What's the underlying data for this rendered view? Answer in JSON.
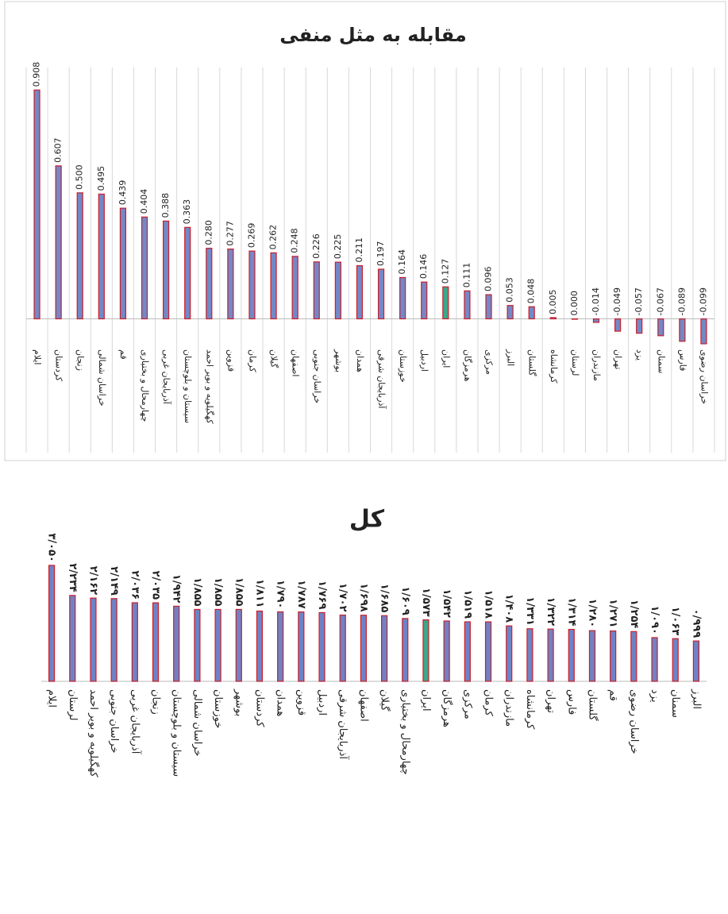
{
  "chart_data": [
    {
      "type": "bar",
      "title": "مقابله به مثل منفی",
      "categories": [
        "ایلام",
        "کردستان",
        "زنجان",
        "خراسان شمالی",
        "قم",
        "چهارمحال و بختیاری",
        "آذربایجان غربی",
        "سیستان و بلوچستان",
        "کهگیلویه و بویر احمد",
        "قزوین",
        "کرمان",
        "گیلان",
        "اصفهان",
        "خراسان جنوبی",
        "بوشهر",
        "همدان",
        "آذربایجان شرقی",
        "خوزستان",
        "اردبیل",
        "ایران",
        "هرمزگان",
        "مرکزی",
        "البرز",
        "گلستان",
        "کرمانشاه",
        "لرستان",
        "مازندران",
        "تهران",
        "یزد",
        "سمنان",
        "فارس",
        "خراسان رضوی"
      ],
      "values": [
        0.908,
        0.607,
        0.5,
        0.495,
        0.439,
        0.404,
        0.388,
        0.363,
        0.28,
        0.277,
        0.269,
        0.262,
        0.248,
        0.226,
        0.225,
        0.211,
        0.197,
        0.164,
        0.146,
        0.127,
        0.111,
        0.096,
        0.053,
        0.048,
        0.005,
        0,
        -0.014,
        -0.049,
        -0.057,
        -0.067,
        -0.089,
        -0.099
      ],
      "value_labels": [
        "0.908",
        "0.607",
        "0.500",
        "0.495",
        "0.439",
        "0.404",
        "0.388",
        "0.363",
        "0.280",
        "0.277",
        "0.269",
        "0.262",
        "0.248",
        "0.226",
        "0.225",
        "0.211",
        "0.197",
        "0.164",
        "0.146",
        "0.127",
        "0.111",
        "0.096",
        "0.053",
        "0.048",
        "0.005",
        "0.000",
        "-0.014",
        "-0.049",
        "-0.057",
        "-0.067",
        "-0.089",
        "-0.099"
      ],
      "color": "#7487c6",
      "edge_color": "#c8202c",
      "highlight": {
        "index": 19,
        "color": "#3aa889"
      },
      "ylim": [
        -0.2,
        0.95
      ],
      "grid": true
    },
    {
      "type": "bar",
      "title": "کل",
      "categories": [
        "ایلام",
        "لرستان",
        "کهگیلویه و بویر احمد",
        "خراسان جنوبی",
        "آذربایجان غربی",
        "زنجان",
        "سیستان و بلوچستان",
        "خراسان شمالی",
        "خوزستان",
        "بوشهر",
        "کردستان",
        "همدان",
        "قزوین",
        "اردبیل",
        "آذربایجان شرقی",
        "اصفهان",
        "گیلان",
        "چهارمحال و بختیاری",
        "ایران",
        "هرمزگان",
        "مرکزی",
        "کرمان",
        "مازندران",
        "کرمانشاه",
        "تهران",
        "فارس",
        "گلستان",
        "قم",
        "خراسان رضوی",
        "یزد",
        "سمنان",
        "البرز"
      ],
      "values": [
        3.05,
        2.234,
        2.162,
        2.149,
        2.036,
        2.035,
        1.942,
        1.855,
        1.855,
        1.855,
        1.811,
        1.79,
        1.787,
        1.769,
        1.702,
        1.698,
        1.685,
        1.609,
        1.573,
        1.542,
        1.519,
        1.518,
        1.408,
        1.331,
        1.322,
        1.314,
        1.28,
        1.271,
        1.254,
        1.09,
        1.063,
        0.999
      ],
      "value_labels": [
        "۳/۰۵۰",
        "۲/۲۳۴",
        "۲/۱۶۲",
        "۲/۱۴۹",
        "۲/۰۳۶",
        "۲/۰۳۵",
        "۱/۹۴۲",
        "۱/۸۵۵",
        "۱/۸۵۵",
        "۱/۸۵۵",
        "۱/۸۱۱",
        "۱/۷۹۰",
        "۱/۷۸۷",
        "۱/۷۶۹",
        "۱/۷۰۲",
        "۱/۶۹۸",
        "۱/۶۸۵",
        "۱/۶۰۹",
        "۱/۵۷۳",
        "۱/۵۴۲",
        "۱/۵۱۹",
        "۱/۵۱۸",
        "۱/۴۰۸",
        "۱/۳۳۱",
        "۱/۳۲۲",
        "۱/۳۱۴",
        "۱/۲۸۰",
        "۱/۲۷۱",
        "۱/۲۵۴",
        "۱/۰۹۰",
        "۱/۰۶۳",
        "۰/۹۹۹"
      ],
      "color": "#6f82c4",
      "edge_color": "#c8202c",
      "highlight": {
        "index": 18,
        "color": "#3aa889"
      },
      "ylim": [
        -1,
        3.2
      ],
      "grid": false
    }
  ]
}
